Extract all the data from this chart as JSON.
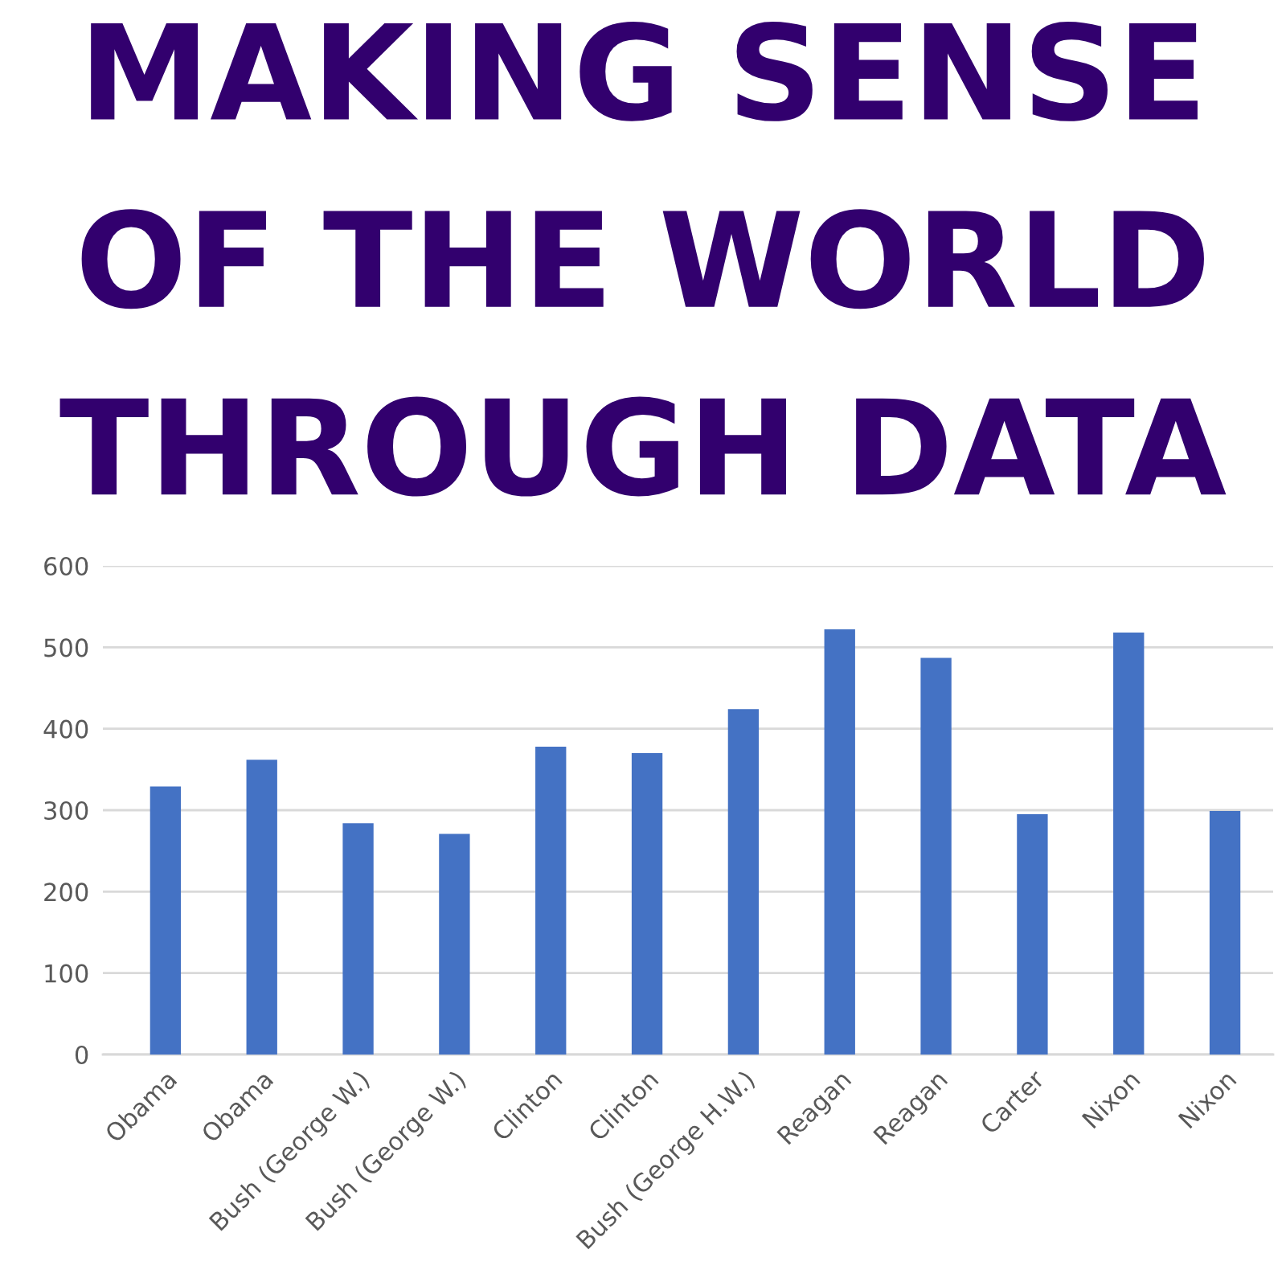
{
  "chart_data": {
    "type": "bar",
    "title": "MAKING SENSE OF THE WORLD THROUGH DATA",
    "categories": [
      "Obama",
      "Obama",
      "Bush (George W.)",
      "Bush (George W.)",
      "Clinton",
      "Clinton",
      "Bush (George H.W.)",
      "Reagan",
      "Reagan",
      "Carter",
      "Nixon",
      "Nixon"
    ],
    "values": [
      329,
      362,
      284,
      271,
      378,
      370,
      424,
      522,
      487,
      295,
      518,
      299
    ],
    "color": "#4472c4",
    "ylim": [
      0,
      600
    ],
    "yticks": [
      0,
      100,
      200,
      300,
      400,
      500,
      600
    ],
    "grid": "y",
    "legend": false
  }
}
